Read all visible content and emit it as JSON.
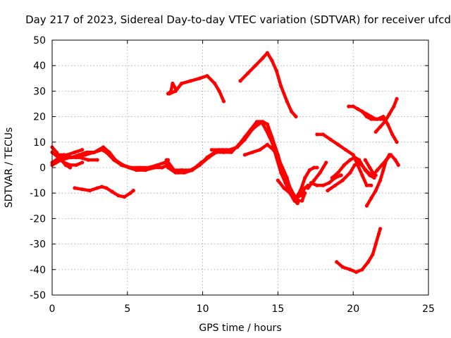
{
  "chart_data": {
    "type": "line",
    "title": "Day 217 of 2023, Sidereal Day-to-day VTEC variation (SDTVAR) for receiver ufcd",
    "xlabel": "GPS time / hours",
    "ylabel": "SDTVAR / TECUs",
    "xlim": [
      0,
      25
    ],
    "ylim": [
      -50,
      50
    ],
    "xticks": [
      "0",
      "5",
      "10",
      "15",
      "20",
      "25"
    ],
    "yticks": [
      "50",
      "40",
      "30",
      "20",
      "10",
      "0",
      "-10",
      "-20",
      "-30",
      "-40",
      "-50"
    ],
    "grid": true,
    "color": "#ff0000",
    "series": [
      {
        "points": [
          [
            0.0,
            8
          ],
          [
            0.3,
            6
          ],
          [
            0.6,
            3
          ],
          [
            0.9,
            1
          ],
          [
            1.2,
            0
          ]
        ]
      },
      {
        "points": [
          [
            0.0,
            6
          ],
          [
            0.4,
            4
          ],
          [
            0.8,
            2
          ],
          [
            1.2,
            1
          ],
          [
            1.6,
            1
          ],
          [
            2.0,
            2
          ]
        ]
      },
      {
        "points": [
          [
            0.0,
            2
          ],
          [
            0.5,
            4
          ],
          [
            1.0,
            5
          ],
          [
            1.5,
            6
          ],
          [
            2.0,
            7
          ]
        ]
      },
      {
        "points": [
          [
            0.0,
            1
          ],
          [
            0.6,
            3
          ],
          [
            1.2,
            4
          ],
          [
            1.8,
            4
          ],
          [
            2.4,
            3
          ],
          [
            3.0,
            3
          ]
        ]
      },
      {
        "points": [
          [
            0.3,
            5
          ],
          [
            0.8,
            5
          ],
          [
            1.3,
            4
          ],
          [
            1.8,
            5
          ],
          [
            2.3,
            6
          ],
          [
            2.8,
            6
          ],
          [
            3.3,
            7
          ],
          [
            3.6,
            6
          ],
          [
            4.1,
            3
          ],
          [
            4.6,
            1
          ],
          [
            5.1,
            0
          ],
          [
            5.6,
            -1
          ],
          [
            6.2,
            -1
          ],
          [
            6.8,
            0
          ],
          [
            7.3,
            0
          ],
          [
            7.7,
            1
          ]
        ]
      },
      {
        "points": [
          [
            1.0,
            4
          ],
          [
            1.6,
            4
          ],
          [
            2.2,
            5
          ],
          [
            2.8,
            6
          ],
          [
            3.4,
            8
          ],
          [
            3.8,
            6
          ],
          [
            4.2,
            3
          ],
          [
            4.7,
            1
          ],
          [
            5.2,
            0
          ],
          [
            5.8,
            0
          ],
          [
            6.4,
            0
          ],
          [
            7.0,
            1
          ],
          [
            7.5,
            2
          ],
          [
            7.7,
            3
          ]
        ]
      },
      {
        "points": [
          [
            1.5,
            -8
          ],
          [
            2.0,
            -8.5
          ],
          [
            2.5,
            -9
          ],
          [
            3.0,
            -8
          ],
          [
            3.3,
            -7.5
          ],
          [
            3.6,
            -8
          ],
          [
            4.0,
            -9.5
          ],
          [
            4.4,
            -11
          ],
          [
            4.8,
            -11.5
          ],
          [
            5.2,
            -10
          ],
          [
            5.4,
            -9
          ]
        ]
      },
      {
        "points": [
          [
            7.5,
            2
          ],
          [
            8.0,
            -1
          ],
          [
            8.4,
            -2
          ],
          [
            8.8,
            -2
          ],
          [
            9.3,
            -1
          ],
          [
            9.8,
            1
          ],
          [
            10.3,
            4
          ],
          [
            10.8,
            6
          ],
          [
            11.3,
            7
          ],
          [
            11.8,
            7
          ],
          [
            12.3,
            8
          ],
          [
            12.8,
            11
          ],
          [
            13.3,
            15
          ],
          [
            13.7,
            17
          ],
          [
            14.0,
            18
          ],
          [
            14.3,
            17
          ],
          [
            14.6,
            12
          ],
          [
            15.0,
            5
          ],
          [
            15.3,
            -1
          ],
          [
            15.6,
            -5
          ],
          [
            15.9,
            -9
          ],
          [
            16.2,
            -12
          ],
          [
            16.4,
            -13
          ]
        ]
      },
      {
        "points": [
          [
            7.6,
            3
          ],
          [
            8.1,
            -1
          ],
          [
            8.6,
            -1
          ],
          [
            9.2,
            -1
          ],
          [
            9.8,
            1
          ],
          [
            10.4,
            4
          ],
          [
            10.9,
            6
          ],
          [
            11.4,
            6
          ],
          [
            11.9,
            6
          ],
          [
            12.4,
            9
          ],
          [
            12.8,
            12
          ],
          [
            13.2,
            15
          ],
          [
            13.6,
            18
          ],
          [
            13.9,
            18
          ],
          [
            14.2,
            15
          ],
          [
            14.6,
            10
          ],
          [
            14.9,
            4
          ],
          [
            15.2,
            -2
          ],
          [
            15.5,
            -6
          ],
          [
            15.8,
            -10
          ],
          [
            16.1,
            -13
          ],
          [
            16.3,
            -14
          ]
        ]
      },
      {
        "points": [
          [
            7.7,
            0
          ],
          [
            8.2,
            -2
          ],
          [
            8.7,
            -2
          ],
          [
            9.3,
            -1
          ],
          [
            9.9,
            2
          ],
          [
            10.4,
            4
          ]
        ]
      },
      {
        "points": [
          [
            7.7,
            29
          ],
          [
            7.9,
            30
          ],
          [
            8.0,
            33
          ],
          [
            8.2,
            31
          ]
        ]
      },
      {
        "points": [
          [
            7.8,
            29
          ],
          [
            8.2,
            30
          ],
          [
            8.6,
            33
          ],
          [
            9.2,
            34
          ],
          [
            9.8,
            35
          ],
          [
            10.3,
            36
          ],
          [
            10.8,
            33
          ],
          [
            11.1,
            30
          ],
          [
            11.4,
            26
          ]
        ]
      },
      {
        "points": [
          [
            10.6,
            7
          ],
          [
            11.1,
            7
          ],
          [
            11.6,
            7
          ]
        ]
      },
      {
        "points": [
          [
            12.5,
            34
          ],
          [
            13.0,
            37
          ],
          [
            13.5,
            40
          ],
          [
            14.0,
            43
          ],
          [
            14.3,
            45
          ],
          [
            14.6,
            42
          ],
          [
            14.9,
            38
          ],
          [
            15.2,
            32
          ],
          [
            15.6,
            26
          ],
          [
            15.9,
            22
          ],
          [
            16.2,
            20
          ]
        ]
      },
      {
        "points": [
          [
            12.8,
            5
          ],
          [
            13.3,
            6
          ],
          [
            13.8,
            7
          ],
          [
            14.3,
            9
          ],
          [
            14.7,
            7
          ],
          [
            15.0,
            4
          ],
          [
            15.3,
            0
          ],
          [
            15.6,
            -4
          ],
          [
            15.8,
            -8
          ],
          [
            16.0,
            -12
          ],
          [
            16.3,
            -14
          ]
        ]
      },
      {
        "points": [
          [
            15.0,
            -5
          ],
          [
            15.4,
            -8
          ],
          [
            15.8,
            -10
          ],
          [
            16.2,
            -12
          ],
          [
            16.5,
            -11
          ],
          [
            16.8,
            -8
          ],
          [
            17.0,
            -7
          ]
        ]
      },
      {
        "points": [
          [
            16.2,
            -12
          ],
          [
            16.5,
            -9
          ],
          [
            16.8,
            -4
          ],
          [
            17.1,
            -1
          ],
          [
            17.4,
            0
          ],
          [
            17.6,
            0
          ]
        ]
      },
      {
        "points": [
          [
            16.6,
            -13
          ],
          [
            16.8,
            -10
          ]
        ]
      },
      {
        "points": [
          [
            17.0,
            -8
          ],
          [
            17.4,
            -5
          ],
          [
            17.8,
            -2
          ],
          [
            18.2,
            2
          ]
        ]
      },
      {
        "points": [
          [
            17.2,
            -6
          ],
          [
            17.6,
            -7
          ],
          [
            18.0,
            -7
          ],
          [
            18.4,
            -6
          ],
          [
            18.8,
            -4
          ],
          [
            19.2,
            -3
          ]
        ]
      },
      {
        "points": [
          [
            17.6,
            13
          ],
          [
            18.0,
            13
          ],
          [
            18.5,
            11
          ],
          [
            19.0,
            9
          ],
          [
            19.5,
            7
          ],
          [
            20.0,
            5
          ],
          [
            20.3,
            1
          ],
          [
            20.6,
            -3
          ],
          [
            20.9,
            -7
          ],
          [
            21.2,
            -7
          ]
        ]
      },
      {
        "points": [
          [
            18.3,
            -9
          ],
          [
            18.8,
            -7
          ],
          [
            19.3,
            -5
          ],
          [
            19.8,
            -2
          ],
          [
            20.1,
            1
          ],
          [
            20.4,
            2
          ],
          [
            20.7,
            0
          ],
          [
            21.0,
            -2
          ],
          [
            21.3,
            -3
          ],
          [
            21.6,
            -1
          ],
          [
            21.9,
            1
          ],
          [
            22.2,
            3
          ],
          [
            22.5,
            5
          ],
          [
            22.8,
            3
          ],
          [
            23.0,
            1
          ]
        ]
      },
      {
        "points": [
          [
            18.6,
            -4
          ],
          [
            19.0,
            -2
          ],
          [
            19.4,
            1
          ],
          [
            19.8,
            3
          ],
          [
            20.1,
            4
          ],
          [
            20.4,
            3
          ],
          [
            20.8,
            -1
          ],
          [
            21.1,
            -3
          ],
          [
            21.4,
            -4
          ]
        ]
      },
      {
        "points": [
          [
            18.9,
            -37
          ],
          [
            19.3,
            -39
          ],
          [
            19.8,
            -40
          ],
          [
            20.2,
            -41
          ],
          [
            20.6,
            -40
          ],
          [
            21.0,
            -37
          ],
          [
            21.3,
            -34
          ],
          [
            21.5,
            -30
          ],
          [
            21.7,
            -26
          ],
          [
            21.8,
            -24
          ]
        ]
      },
      {
        "points": [
          [
            19.7,
            24
          ],
          [
            20.0,
            24
          ],
          [
            20.3,
            23
          ],
          [
            20.6,
            22
          ],
          [
            20.9,
            20
          ],
          [
            21.2,
            19
          ],
          [
            21.6,
            19
          ],
          [
            22.0,
            20
          ],
          [
            22.3,
            17
          ],
          [
            22.6,
            13
          ],
          [
            22.9,
            10
          ]
        ]
      },
      {
        "points": [
          [
            20.3,
            23
          ],
          [
            20.6,
            22
          ],
          [
            20.9,
            21
          ],
          [
            21.2,
            20
          ],
          [
            21.5,
            19
          ],
          [
            21.8,
            19
          ],
          [
            22.0,
            19
          ]
        ]
      },
      {
        "points": [
          [
            20.8,
            3
          ],
          [
            21.1,
            0
          ],
          [
            21.3,
            -2
          ],
          [
            21.5,
            -3
          ]
        ]
      },
      {
        "points": [
          [
            20.9,
            -15
          ],
          [
            21.2,
            -12
          ],
          [
            21.5,
            -9
          ],
          [
            21.8,
            -5
          ],
          [
            22.0,
            -1
          ],
          [
            22.2,
            3
          ],
          [
            22.4,
            5
          ]
        ]
      },
      {
        "points": [
          [
            21.5,
            14
          ],
          [
            21.8,
            16
          ],
          [
            22.1,
            18
          ],
          [
            22.4,
            21
          ],
          [
            22.7,
            24
          ],
          [
            22.9,
            27
          ]
        ]
      }
    ]
  }
}
